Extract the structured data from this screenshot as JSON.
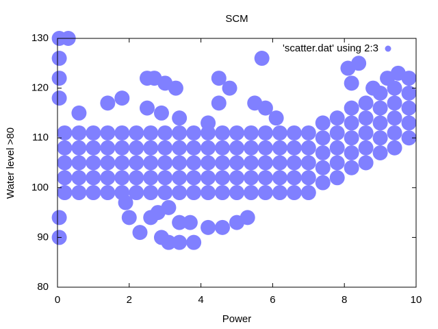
{
  "chart_data": {
    "type": "scatter",
    "title": "SCM",
    "x_label": "Power",
    "y_label": "Water level >80",
    "xlim": [
      0,
      10
    ],
    "ylim": [
      80,
      130
    ],
    "xticks": [
      0,
      2,
      4,
      6,
      8,
      10
    ],
    "yticks": [
      80,
      90,
      100,
      110,
      120,
      130
    ],
    "legend": "top right",
    "series": [
      {
        "name": "'scatter.dat' using 2:3",
        "color": "#8080ff",
        "x": [
          0.2,
          0.6,
          1,
          1.4,
          1.8,
          2.2,
          2.6,
          3,
          3.4,
          3.8,
          4.2,
          4.6,
          5,
          5.4,
          5.8,
          6.2,
          6.6,
          7,
          0.2,
          0.6,
          1,
          1.4,
          1.8,
          2.2,
          2.6,
          3,
          3.4,
          3.8,
          4.2,
          4.6,
          5,
          5.4,
          5.8,
          6.2,
          6.6,
          7,
          0.2,
          0.6,
          1,
          1.4,
          1.8,
          2.2,
          2.6,
          3,
          3.4,
          3.8,
          4.2,
          4.6,
          5,
          5.4,
          5.8,
          6.2,
          6.6,
          7,
          0.2,
          0.6,
          1,
          1.4,
          1.8,
          2.2,
          2.6,
          3,
          3.4,
          3.8,
          4.2,
          4.6,
          5,
          5.4,
          5.8,
          6.2,
          6.6,
          7,
          0.2,
          0.6,
          1,
          1.4,
          1.8,
          2.2,
          2.6,
          3,
          3.4,
          3.8,
          4.2,
          4.6,
          5,
          5.4,
          5.8,
          6.2,
          6.6,
          7,
          7.4,
          7.4,
          7.4,
          7.4,
          7.4,
          7.8,
          7.8,
          7.8,
          7.8,
          7.8,
          8.2,
          8.2,
          8.2,
          8.2,
          8.2,
          8.6,
          8.6,
          8.6,
          8.6,
          8.6,
          9,
          9,
          9,
          9,
          9,
          9.4,
          9.4,
          9.4,
          9.4,
          9.4,
          9.8,
          9.8,
          9.8,
          9.8,
          9.8,
          0.05,
          0.05,
          0.05,
          0.05,
          0.05,
          0.05,
          0.3,
          5.7,
          4.5,
          2.5,
          2.7,
          3,
          3.3,
          4.8,
          8.1,
          8.4,
          8.2,
          1.4,
          1.8,
          2.5,
          2.9,
          0.6,
          3.4,
          1.9,
          2,
          2.3,
          2.6,
          2.9,
          3.1,
          3.4,
          3.8,
          3.4,
          3.7,
          4.2,
          4.6,
          5,
          5.3,
          2.8,
          3.1,
          5.5,
          5.8,
          6.1,
          4.2,
          4.5,
          8.8,
          9.2,
          9.5
        ],
        "values": [
          99,
          99,
          99,
          99,
          99,
          99,
          99,
          99,
          99,
          99,
          99,
          99,
          99,
          99,
          99,
          99,
          99,
          99,
          102,
          102,
          102,
          102,
          102,
          102,
          102,
          102,
          102,
          102,
          102,
          102,
          102,
          102,
          102,
          102,
          102,
          102,
          105,
          105,
          105,
          105,
          105,
          105,
          105,
          105,
          105,
          105,
          105,
          105,
          105,
          105,
          105,
          105,
          105,
          105,
          108,
          108,
          108,
          108,
          108,
          108,
          108,
          108,
          108,
          108,
          108,
          108,
          108,
          108,
          108,
          108,
          108,
          108,
          111,
          111,
          111,
          111,
          111,
          111,
          111,
          111,
          111,
          111,
          111,
          111,
          111,
          111,
          111,
          111,
          111,
          111,
          101,
          104,
          107,
          110,
          113,
          102,
          105,
          108,
          111,
          114,
          104,
          107,
          110,
          113,
          116,
          105,
          108,
          111,
          114,
          117,
          107,
          110,
          113,
          116,
          119,
          108,
          111,
          114,
          117,
          120,
          110,
          113,
          116,
          119,
          122,
          90,
          94,
          118,
          122,
          126,
          130,
          130,
          126,
          122,
          122,
          122,
          121,
          120,
          120,
          124,
          125,
          121,
          117,
          118,
          116,
          115,
          115,
          114,
          97,
          94,
          91,
          94,
          90,
          89,
          89,
          89,
          93,
          93,
          92,
          92,
          93,
          94,
          95,
          96,
          117,
          116,
          114,
          113,
          117,
          120,
          122,
          123
        ]
      }
    ]
  }
}
